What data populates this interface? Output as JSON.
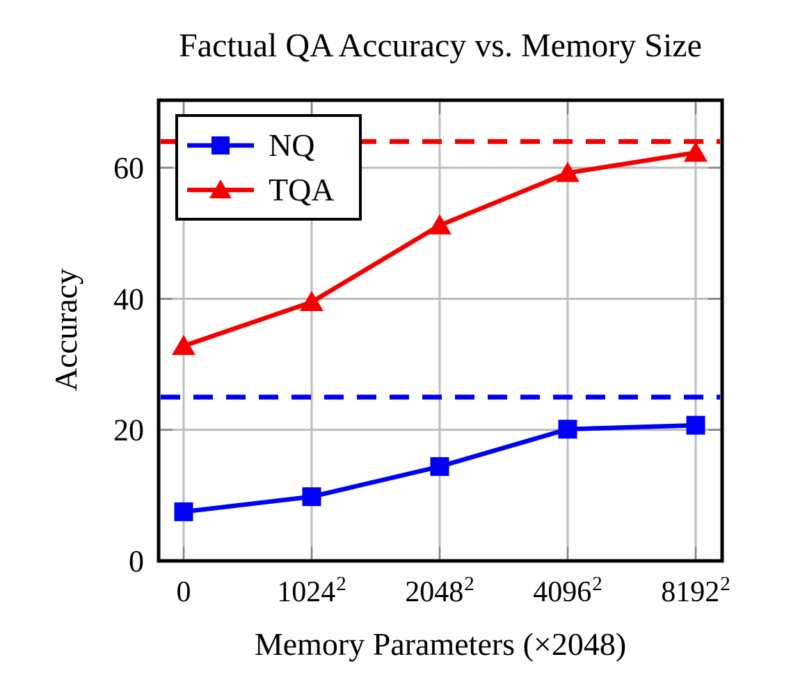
{
  "figure": {
    "background": "#ffffff"
  },
  "chart_data": {
    "type": "line",
    "title": "Factual QA Accuracy vs. Memory Size",
    "xlabel": "Memory Parameters (×2048)",
    "ylabel": "Accuracy",
    "x_tick_labels": [
      "0",
      "1024²",
      "2048²",
      "4096²",
      "8192²"
    ],
    "y_ticks": [
      0,
      20,
      40,
      60
    ],
    "ylim": [
      0,
      70.3
    ],
    "grid": true,
    "legend": {
      "position": "top-left",
      "entries": [
        "NQ",
        "TQA"
      ]
    },
    "series": [
      {
        "name": "NQ",
        "color": "#0000f5",
        "marker": "square",
        "line_style": "solid",
        "values": [
          7.5,
          9.8,
          14.4,
          20.1,
          20.7
        ]
      },
      {
        "name": "TQA",
        "color": "#f50000",
        "marker": "triangle",
        "line_style": "solid",
        "values": [
          32.8,
          39.5,
          51.2,
          59.2,
          62.3
        ]
      }
    ],
    "reference_lines": [
      {
        "color": "#0000f5",
        "style": "dashed",
        "value": 25
      },
      {
        "color": "#f50000",
        "style": "dashed",
        "value": 64
      }
    ],
    "axis_colors": {
      "grid": "#bcbcbc",
      "tick": "#848484",
      "frame": "#000000"
    }
  }
}
